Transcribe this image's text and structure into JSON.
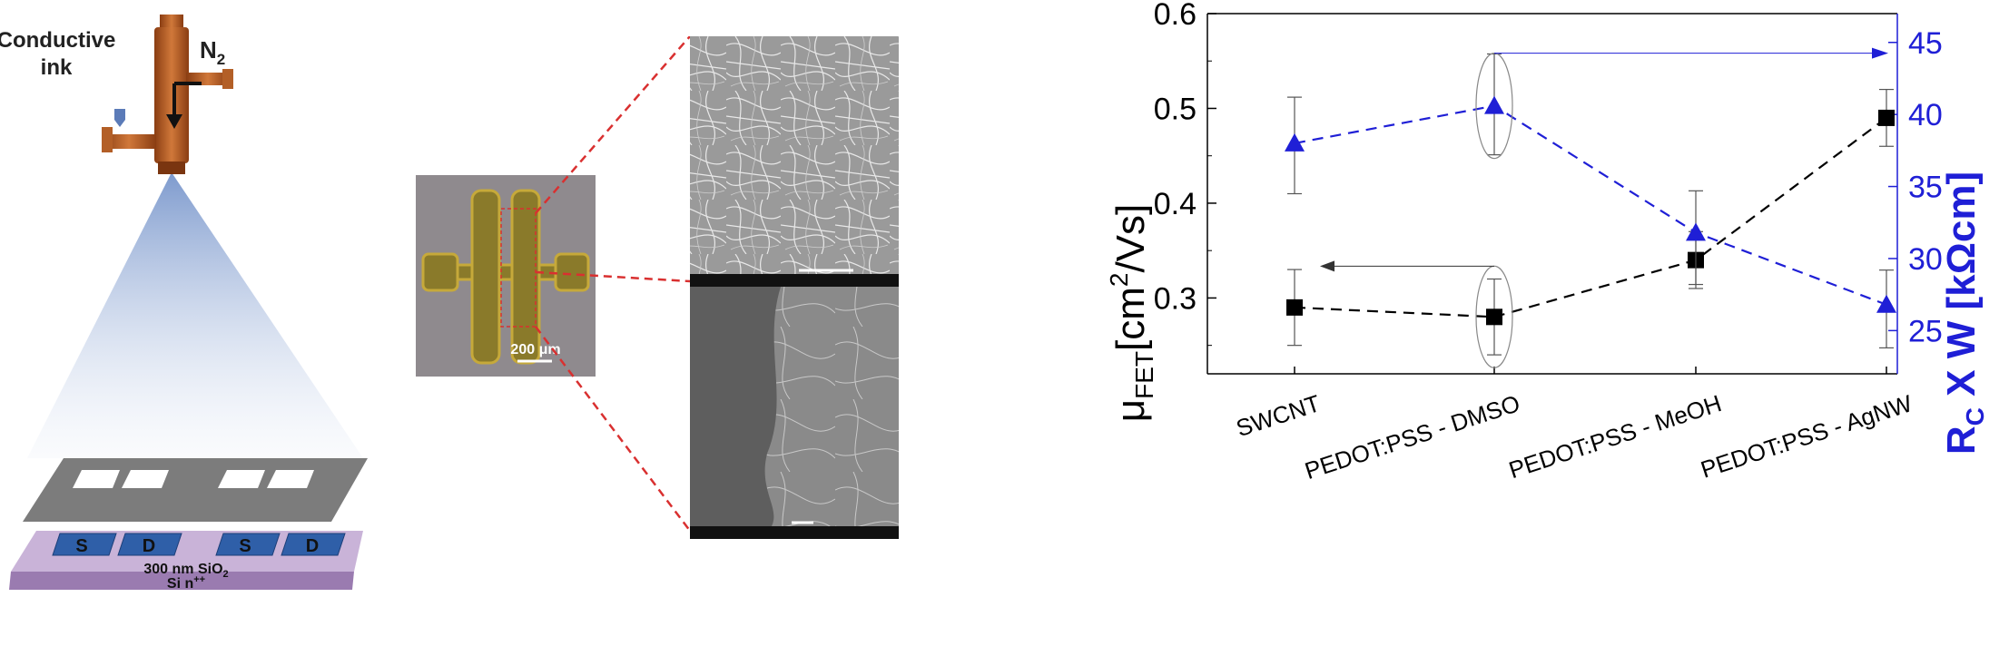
{
  "schematic": {
    "ink_label_line1": "Conductive",
    "ink_label_line2": "ink",
    "gas_label": "N",
    "gas_subscript": "2",
    "electrode_labels": [
      "S",
      "D",
      "S",
      "D"
    ],
    "substrate_line1": "300 nm SiO",
    "substrate_line1_sub": "2",
    "substrate_line2": "Si n",
    "substrate_line2_sup": "++"
  },
  "micrograph": {
    "scale_bar_label": "200 μm"
  },
  "chart_data": {
    "type": "scatter",
    "categories": [
      "SWCNT",
      "PEDOT:PSS - DMSO",
      "PEDOT:PSS - MeOH",
      "PEDOT:PSS - AgNW"
    ],
    "left_axis": {
      "label_main": "μ",
      "label_sub": "FET",
      "label_rest": "[cm",
      "label_sup": "2",
      "label_end": "/Vs]",
      "range": [
        0.22,
        0.6
      ],
      "ticks": [
        "0.3",
        "0.4",
        "0.5",
        "0.6"
      ],
      "tick_values": [
        0.3,
        0.4,
        0.5,
        0.6
      ],
      "color": "#000000"
    },
    "right_axis": {
      "label_main": "R",
      "label_sub": "C",
      "label_rest": " X W [kΩcm]",
      "range": [
        22,
        47
      ],
      "ticks": [
        "25",
        "30",
        "35",
        "40",
        "45"
      ],
      "tick_values": [
        25,
        30,
        35,
        40,
        45
      ],
      "color": "#1f1fd6"
    },
    "series": [
      {
        "axis": "left",
        "marker": "square",
        "color": "#000000",
        "values": [
          0.29,
          0.28,
          0.34,
          0.49
        ],
        "err_low": [
          0.25,
          0.24,
          0.31,
          0.46
        ],
        "err_high": [
          0.33,
          0.32,
          0.37,
          0.52
        ]
      },
      {
        "axis": "right",
        "marker": "triangle",
        "color": "#1f1fd6",
        "values": [
          38,
          40.6,
          31.8,
          26.8
        ],
        "err_low": [
          34.5,
          37.2,
          28.2,
          23.8
        ],
        "err_high": [
          41.2,
          44.2,
          34.7,
          29.2
        ]
      }
    ],
    "grid": false
  }
}
